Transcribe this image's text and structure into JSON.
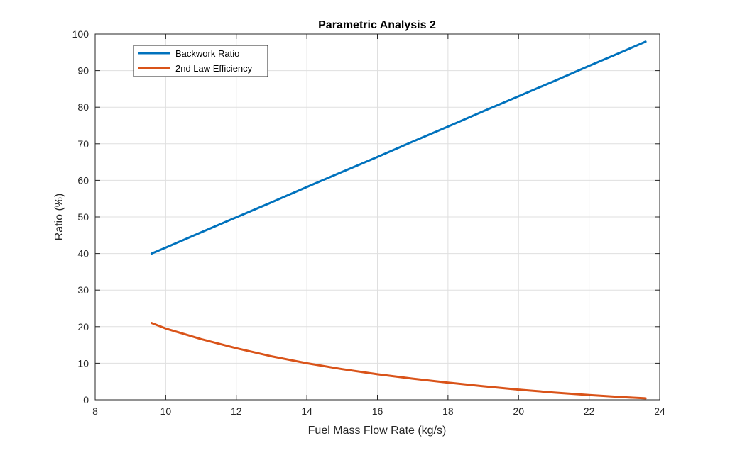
{
  "chart_data": {
    "type": "line",
    "title": "Parametric Analysis 2",
    "xlabel": "Fuel Mass Flow Rate (kg/s)",
    "ylabel": "Ratio (%)",
    "xlim": [
      8,
      24
    ],
    "ylim": [
      0,
      100
    ],
    "xticks": [
      8,
      10,
      12,
      14,
      16,
      18,
      20,
      22,
      24
    ],
    "yticks": [
      0,
      10,
      20,
      30,
      40,
      50,
      60,
      70,
      80,
      90,
      100
    ],
    "grid": true,
    "legend_position": "top-left",
    "series": [
      {
        "name": "Backwork Ratio",
        "color": "#0072BD",
        "x": [
          9.6,
          10,
          11,
          12,
          13,
          14,
          15,
          16,
          17,
          18,
          19,
          20,
          21,
          22,
          23,
          23.6
        ],
        "y": [
          40.0,
          41.6,
          45.8,
          49.9,
          54.0,
          58.2,
          62.3,
          66.4,
          70.6,
          74.7,
          78.9,
          83.0,
          87.1,
          91.3,
          95.4,
          97.9
        ]
      },
      {
        "name": "2nd Law Efficiency",
        "color": "#D95319",
        "x": [
          9.6,
          10,
          11,
          12,
          13,
          14,
          15,
          16,
          17,
          18,
          19,
          20,
          21,
          22,
          23,
          23.6
        ],
        "y": [
          21.0,
          19.5,
          16.6,
          14.1,
          11.9,
          10.0,
          8.4,
          7.0,
          5.8,
          4.7,
          3.7,
          2.8,
          2.0,
          1.3,
          0.7,
          0.4
        ]
      }
    ]
  }
}
